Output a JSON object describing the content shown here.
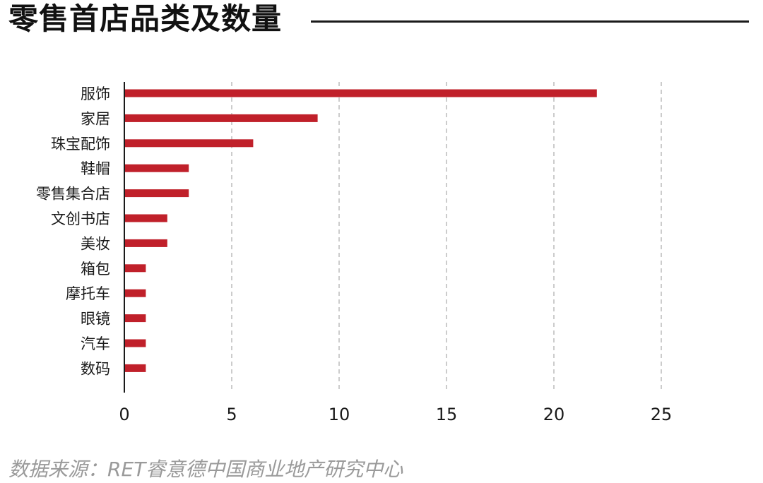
{
  "title": "零售首店品类及数量",
  "source": "数据来源：RET睿意德中国商业地产研究中心",
  "colors": {
    "bar": "#c0202a",
    "axis": "#1a1a1a",
    "grid": "#9a9a9a",
    "title_rule": "#1a1a1a"
  },
  "chart_data": {
    "type": "bar",
    "orientation": "horizontal",
    "categories": [
      "服饰",
      "家居",
      "珠宝配饰",
      "鞋帽",
      "零售集合店",
      "文创书店",
      "美妆",
      "箱包",
      "摩托车",
      "眼镜",
      "汽车",
      "数码"
    ],
    "values": [
      22,
      9,
      6,
      3,
      3,
      2,
      2,
      1,
      1,
      1,
      1,
      1
    ],
    "xlim": [
      0,
      27
    ],
    "xticks": [
      0,
      5,
      10,
      15,
      20,
      25
    ],
    "grid": "vertical-dashed",
    "legend": "none"
  }
}
